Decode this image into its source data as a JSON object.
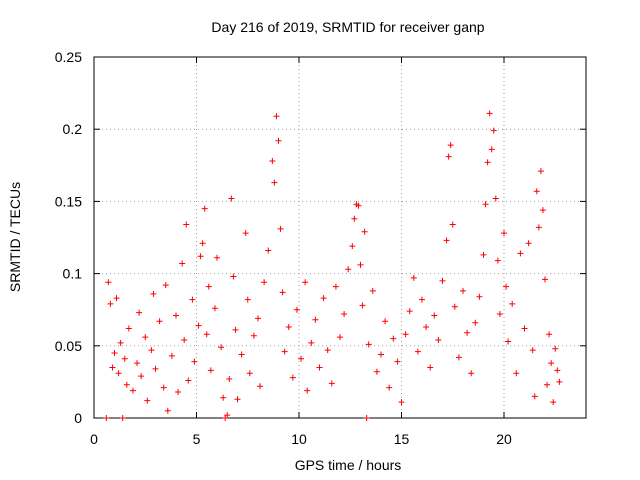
{
  "chart_data": {
    "type": "scatter",
    "title": "Day 216 of 2019, SRMTID for receiver ganp",
    "xlabel": "GPS time / hours",
    "ylabel": "SRMTID / TECUs",
    "xlim": [
      0,
      24
    ],
    "ylim": [
      0,
      0.25
    ],
    "xticks": [
      0,
      5,
      10,
      15,
      20
    ],
    "yticks": [
      0,
      0.05,
      0.1,
      0.15,
      0.2,
      0.25
    ],
    "xtick_labels": [
      "0",
      "5",
      "10",
      "15",
      "20"
    ],
    "ytick_labels": [
      "0",
      "0.05",
      "0.1",
      "0.15",
      "0.2",
      "0.25"
    ],
    "grid": true,
    "legend": "none",
    "marker": "+",
    "color": "#ff0000",
    "series": [
      {
        "name": "SRMTID",
        "points": [
          [
            0.6,
            0.0
          ],
          [
            0.7,
            0.094
          ],
          [
            0.8,
            0.079
          ],
          [
            0.9,
            0.035
          ],
          [
            1.0,
            0.045
          ],
          [
            1.1,
            0.083
          ],
          [
            1.2,
            0.031
          ],
          [
            1.3,
            0.052
          ],
          [
            1.4,
            0.0
          ],
          [
            1.5,
            0.041
          ],
          [
            1.6,
            0.023
          ],
          [
            1.7,
            0.062
          ],
          [
            1.9,
            0.019
          ],
          [
            2.1,
            0.038
          ],
          [
            2.2,
            0.073
          ],
          [
            2.3,
            0.029
          ],
          [
            2.5,
            0.056
          ],
          [
            2.6,
            0.012
          ],
          [
            2.8,
            0.047
          ],
          [
            2.9,
            0.086
          ],
          [
            3.0,
            0.034
          ],
          [
            3.2,
            0.067
          ],
          [
            3.4,
            0.021
          ],
          [
            3.5,
            0.092
          ],
          [
            3.6,
            0.005
          ],
          [
            3.8,
            0.043
          ],
          [
            4.0,
            0.071
          ],
          [
            4.1,
            0.018
          ],
          [
            4.3,
            0.107
          ],
          [
            4.4,
            0.054
          ],
          [
            4.5,
            0.134
          ],
          [
            4.6,
            0.026
          ],
          [
            4.8,
            0.082
          ],
          [
            4.9,
            0.039
          ],
          [
            5.1,
            0.064
          ],
          [
            5.2,
            0.112
          ],
          [
            5.3,
            0.121
          ],
          [
            5.4,
            0.145
          ],
          [
            5.5,
            0.058
          ],
          [
            5.6,
            0.091
          ],
          [
            5.7,
            0.033
          ],
          [
            5.9,
            0.076
          ],
          [
            6.0,
            0.111
          ],
          [
            6.2,
            0.049
          ],
          [
            6.3,
            0.014
          ],
          [
            6.4,
            0.0
          ],
          [
            6.5,
            0.002
          ],
          [
            6.6,
            0.027
          ],
          [
            6.7,
            0.152
          ],
          [
            6.8,
            0.098
          ],
          [
            6.9,
            0.061
          ],
          [
            7.0,
            0.013
          ],
          [
            7.2,
            0.044
          ],
          [
            7.4,
            0.128
          ],
          [
            7.5,
            0.082
          ],
          [
            7.6,
            0.031
          ],
          [
            7.8,
            0.057
          ],
          [
            8.0,
            0.069
          ],
          [
            8.1,
            0.022
          ],
          [
            8.3,
            0.094
          ],
          [
            8.5,
            0.116
          ],
          [
            8.7,
            0.178
          ],
          [
            8.8,
            0.163
          ],
          [
            8.9,
            0.209
          ],
          [
            9.0,
            0.192
          ],
          [
            9.1,
            0.131
          ],
          [
            9.2,
            0.087
          ],
          [
            9.3,
            0.046
          ],
          [
            9.5,
            0.063
          ],
          [
            9.7,
            0.028
          ],
          [
            9.9,
            0.075
          ],
          [
            10.1,
            0.041
          ],
          [
            10.3,
            0.094
          ],
          [
            10.4,
            0.019
          ],
          [
            10.6,
            0.052
          ],
          [
            10.8,
            0.068
          ],
          [
            11.0,
            0.035
          ],
          [
            11.2,
            0.083
          ],
          [
            11.4,
            0.047
          ],
          [
            11.6,
            0.024
          ],
          [
            11.8,
            0.091
          ],
          [
            12.0,
            0.056
          ],
          [
            12.2,
            0.072
          ],
          [
            12.4,
            0.103
          ],
          [
            12.6,
            0.119
          ],
          [
            12.7,
            0.138
          ],
          [
            12.8,
            0.148
          ],
          [
            12.9,
            0.147
          ],
          [
            13.0,
            0.106
          ],
          [
            13.1,
            0.078
          ],
          [
            13.2,
            0.129
          ],
          [
            13.3,
            0.0
          ],
          [
            13.4,
            0.051
          ],
          [
            13.6,
            0.088
          ],
          [
            13.8,
            0.032
          ],
          [
            14.0,
            0.044
          ],
          [
            14.2,
            0.067
          ],
          [
            14.4,
            0.021
          ],
          [
            14.6,
            0.055
          ],
          [
            14.8,
            0.039
          ],
          [
            15.0,
            0.011
          ],
          [
            15.2,
            0.058
          ],
          [
            15.4,
            0.074
          ],
          [
            15.6,
            0.097
          ],
          [
            15.8,
            0.046
          ],
          [
            16.0,
            0.082
          ],
          [
            16.2,
            0.063
          ],
          [
            16.4,
            0.035
          ],
          [
            16.6,
            0.071
          ],
          [
            16.8,
            0.054
          ],
          [
            17.0,
            0.095
          ],
          [
            17.2,
            0.123
          ],
          [
            17.3,
            0.181
          ],
          [
            17.4,
            0.189
          ],
          [
            17.5,
            0.134
          ],
          [
            17.6,
            0.077
          ],
          [
            17.8,
            0.042
          ],
          [
            18.0,
            0.088
          ],
          [
            18.2,
            0.059
          ],
          [
            18.4,
            0.031
          ],
          [
            18.6,
            0.066
          ],
          [
            18.8,
            0.084
          ],
          [
            19.0,
            0.113
          ],
          [
            19.1,
            0.148
          ],
          [
            19.2,
            0.177
          ],
          [
            19.3,
            0.211
          ],
          [
            19.4,
            0.186
          ],
          [
            19.5,
            0.199
          ],
          [
            19.6,
            0.152
          ],
          [
            19.7,
            0.109
          ],
          [
            19.8,
            0.072
          ],
          [
            20.0,
            0.128
          ],
          [
            20.1,
            0.091
          ],
          [
            20.2,
            0.053
          ],
          [
            20.4,
            0.079
          ],
          [
            20.6,
            0.031
          ],
          [
            20.8,
            0.114
          ],
          [
            21.0,
            0.062
          ],
          [
            21.2,
            0.121
          ],
          [
            21.4,
            0.047
          ],
          [
            21.5,
            0.015
          ],
          [
            21.6,
            0.157
          ],
          [
            21.7,
            0.132
          ],
          [
            21.8,
            0.171
          ],
          [
            21.9,
            0.144
          ],
          [
            22.0,
            0.096
          ],
          [
            22.1,
            0.023
          ],
          [
            22.2,
            0.058
          ],
          [
            22.3,
            0.038
          ],
          [
            22.4,
            0.011
          ],
          [
            22.5,
            0.048
          ],
          [
            22.6,
            0.033
          ],
          [
            22.7,
            0.025
          ]
        ]
      }
    ]
  }
}
